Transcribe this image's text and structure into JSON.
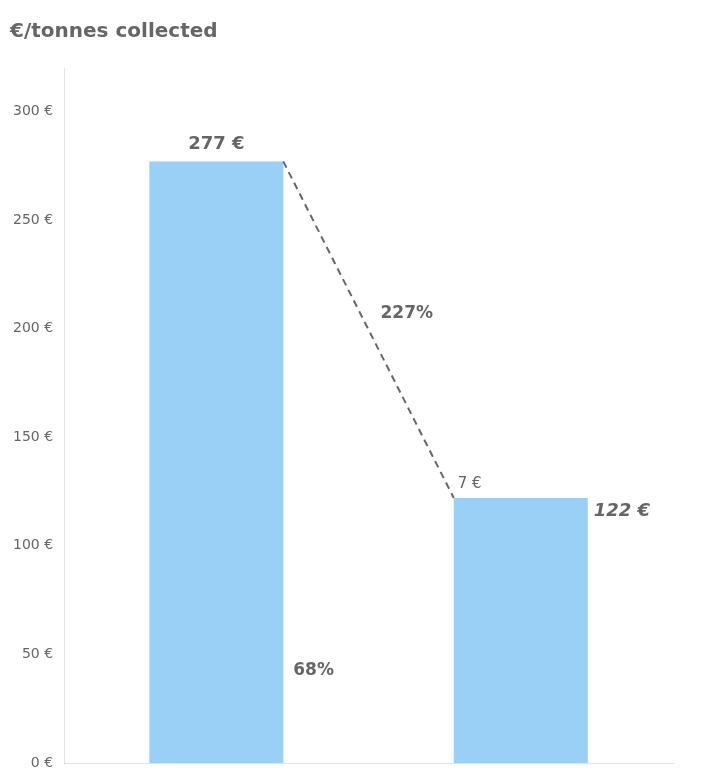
{
  "chart_data": {
    "type": "bar",
    "title": "€/tonnes collected",
    "categories": [
      null,
      null
    ],
    "values": [
      277,
      122
    ],
    "value_labels": [
      "277 €",
      "122 €"
    ],
    "data_labels": true,
    "annotations": [
      "7 €",
      "227%",
      "68%"
    ],
    "ylim": [
      0,
      320
    ],
    "yticks": [
      {
        "value": 0,
        "label": "0 €"
      },
      {
        "value": 50,
        "label": "50 €"
      },
      {
        "value": 100,
        "label": "100 €"
      },
      {
        "value": 150,
        "label": "150 €"
      },
      {
        "value": 200,
        "label": "200 €"
      },
      {
        "value": 250,
        "label": "250 €"
      },
      {
        "value": 300,
        "label": "300 €"
      }
    ],
    "grid": false,
    "tick_labels": "y"
  }
}
